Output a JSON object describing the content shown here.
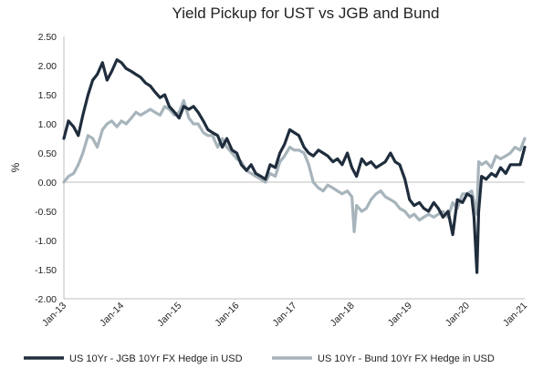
{
  "chart_data": {
    "type": "line",
    "title": "Yield Pickup for UST vs JGB and Bund",
    "ylabel": "%",
    "xlabel": "",
    "ylim": [
      -2.0,
      2.5
    ],
    "yticks": [
      "2.50",
      "2.00",
      "1.50",
      "1.00",
      "0.50",
      "0.00",
      "-0.50",
      "-1.00",
      "-1.50",
      "-2.00"
    ],
    "ytick_values": [
      2.5,
      2.0,
      1.5,
      1.0,
      0.5,
      0.0,
      -0.5,
      -1.0,
      -1.5,
      -2.0
    ],
    "xticks": [
      "Jan-13",
      "Jan-14",
      "Jan-15",
      "Jan-16",
      "Jan-17",
      "Jan-18",
      "Jan-19",
      "Jan-20",
      "Jan-21"
    ],
    "xtick_values": [
      2013,
      2014,
      2015,
      2016,
      2017,
      2018,
      2019,
      2020,
      2021
    ],
    "grid": false,
    "legend": "bottom",
    "colors": {
      "jgb": "#1f2d3d",
      "bund": "#a7b4bb",
      "axis": "#bfbfbf"
    },
    "series": [
      {
        "name": "US 10Yr - JGB 10Yr FX Hedge in USD",
        "x": [
          2013.0,
          2013.08,
          2013.17,
          2013.25,
          2013.33,
          2013.42,
          2013.5,
          2013.58,
          2013.67,
          2013.75,
          2013.83,
          2013.92,
          2014.0,
          2014.08,
          2014.17,
          2014.25,
          2014.33,
          2014.42,
          2014.5,
          2014.58,
          2014.67,
          2014.75,
          2014.83,
          2014.92,
          2015.0,
          2015.08,
          2015.17,
          2015.25,
          2015.33,
          2015.42,
          2015.5,
          2015.58,
          2015.67,
          2015.75,
          2015.83,
          2015.92,
          2016.0,
          2016.08,
          2016.17,
          2016.25,
          2016.33,
          2016.42,
          2016.5,
          2016.58,
          2016.67,
          2016.75,
          2016.83,
          2016.92,
          2017.0,
          2017.08,
          2017.17,
          2017.25,
          2017.33,
          2017.42,
          2017.5,
          2017.58,
          2017.67,
          2017.75,
          2017.83,
          2017.92,
          2018.0,
          2018.08,
          2018.17,
          2018.25,
          2018.33,
          2018.42,
          2018.5,
          2018.58,
          2018.67,
          2018.75,
          2018.83,
          2018.92,
          2019.0,
          2019.08,
          2019.17,
          2019.25,
          2019.33,
          2019.42,
          2019.5,
          2019.58,
          2019.67,
          2019.75,
          2019.83,
          2019.92,
          2020.0,
          2020.08,
          2020.12,
          2020.17,
          2020.2,
          2020.25,
          2020.33,
          2020.42,
          2020.5,
          2020.58,
          2020.67,
          2020.75,
          2020.83,
          2020.92,
          2021.0
        ],
        "y": [
          0.75,
          1.05,
          0.95,
          0.8,
          1.15,
          1.5,
          1.75,
          1.85,
          2.05,
          1.75,
          1.9,
          2.1,
          2.05,
          1.95,
          1.9,
          1.85,
          1.8,
          1.7,
          1.65,
          1.55,
          1.45,
          1.5,
          1.3,
          1.2,
          1.1,
          1.3,
          1.25,
          1.3,
          1.2,
          1.05,
          0.9,
          0.85,
          0.8,
          0.6,
          0.75,
          0.55,
          0.5,
          0.3,
          0.2,
          0.3,
          0.15,
          0.1,
          0.05,
          0.3,
          0.25,
          0.5,
          0.65,
          0.9,
          0.85,
          0.8,
          0.6,
          0.5,
          0.45,
          0.55,
          0.5,
          0.45,
          0.35,
          0.4,
          0.3,
          0.5,
          0.25,
          0.1,
          0.4,
          0.3,
          0.35,
          0.25,
          0.3,
          0.35,
          0.5,
          0.35,
          0.3,
          0.05,
          -0.3,
          -0.4,
          -0.35,
          -0.45,
          -0.5,
          -0.35,
          -0.45,
          -0.6,
          -0.5,
          -0.9,
          -0.3,
          -0.35,
          -0.2,
          -0.25,
          -0.6,
          -1.55,
          -0.5,
          0.1,
          0.05,
          0.15,
          0.1,
          0.25,
          0.15,
          0.3,
          0.3,
          0.3,
          0.6
        ]
      },
      {
        "name": "US 10Yr - Bund 10Yr FX Hedge in USD",
        "x": [
          2013.0,
          2013.08,
          2013.17,
          2013.25,
          2013.33,
          2013.42,
          2013.5,
          2013.58,
          2013.67,
          2013.75,
          2013.83,
          2013.92,
          2014.0,
          2014.08,
          2014.17,
          2014.25,
          2014.33,
          2014.42,
          2014.5,
          2014.58,
          2014.67,
          2014.75,
          2014.83,
          2014.92,
          2015.0,
          2015.08,
          2015.17,
          2015.25,
          2015.33,
          2015.42,
          2015.5,
          2015.58,
          2015.67,
          2015.75,
          2015.83,
          2015.92,
          2016.0,
          2016.08,
          2016.17,
          2016.25,
          2016.33,
          2016.42,
          2016.5,
          2016.58,
          2016.67,
          2016.75,
          2016.83,
          2016.92,
          2017.0,
          2017.08,
          2017.17,
          2017.25,
          2017.33,
          2017.42,
          2017.5,
          2017.58,
          2017.67,
          2017.75,
          2017.83,
          2017.92,
          2018.0,
          2018.04,
          2018.08,
          2018.17,
          2018.25,
          2018.33,
          2018.42,
          2018.5,
          2018.58,
          2018.67,
          2018.75,
          2018.83,
          2018.92,
          2019.0,
          2019.08,
          2019.17,
          2019.25,
          2019.33,
          2019.42,
          2019.5,
          2019.58,
          2019.67,
          2019.75,
          2019.83,
          2019.92,
          2020.0,
          2020.08,
          2020.17,
          2020.2,
          2020.25,
          2020.33,
          2020.42,
          2020.5,
          2020.58,
          2020.67,
          2020.75,
          2020.83,
          2020.92,
          2021.0
        ],
        "y": [
          0.0,
          0.1,
          0.15,
          0.3,
          0.5,
          0.8,
          0.75,
          0.6,
          0.9,
          1.0,
          1.05,
          0.95,
          1.05,
          1.0,
          1.1,
          1.2,
          1.15,
          1.2,
          1.25,
          1.2,
          1.15,
          1.3,
          1.25,
          1.15,
          1.2,
          1.4,
          1.1,
          1.0,
          1.0,
          0.85,
          0.8,
          0.8,
          0.6,
          0.75,
          0.6,
          0.5,
          0.4,
          0.35,
          0.2,
          0.15,
          0.1,
          0.05,
          0.0,
          0.15,
          0.1,
          0.35,
          0.45,
          0.6,
          0.55,
          0.55,
          0.5,
          0.3,
          0.0,
          -0.1,
          -0.15,
          -0.05,
          -0.1,
          -0.15,
          -0.2,
          -0.15,
          -0.25,
          -0.85,
          -0.4,
          -0.5,
          -0.45,
          -0.3,
          -0.2,
          -0.15,
          -0.25,
          -0.3,
          -0.35,
          -0.45,
          -0.5,
          -0.6,
          -0.55,
          -0.65,
          -0.6,
          -0.55,
          -0.6,
          -0.55,
          -0.5,
          -0.6,
          -0.35,
          -0.45,
          -0.2,
          -0.2,
          -0.15,
          -0.55,
          0.35,
          0.3,
          0.35,
          0.25,
          0.45,
          0.4,
          0.45,
          0.5,
          0.6,
          0.55,
          0.75
        ]
      }
    ]
  }
}
